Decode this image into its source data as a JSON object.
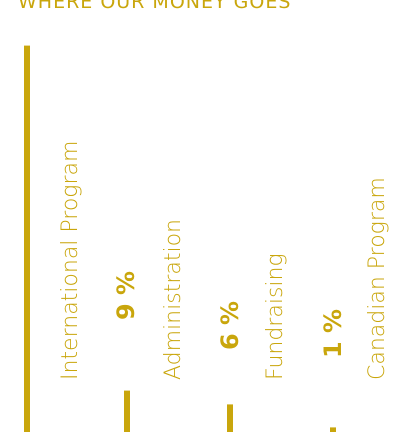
{
  "chart_data": {
    "type": "bar",
    "title": "WHERE OUR MONEY GOES",
    "categories": [
      "International Program",
      "Administration",
      "Fundraising",
      "Canadian Program"
    ],
    "values": [
      9,
      6,
      1,
      84
    ],
    "value_labels": [
      "9 %",
      "6 %",
      "1 %",
      ""
    ],
    "unit": "%",
    "bar_color": "#c9a60c",
    "orientation": "vertical",
    "grid": false
  }
}
